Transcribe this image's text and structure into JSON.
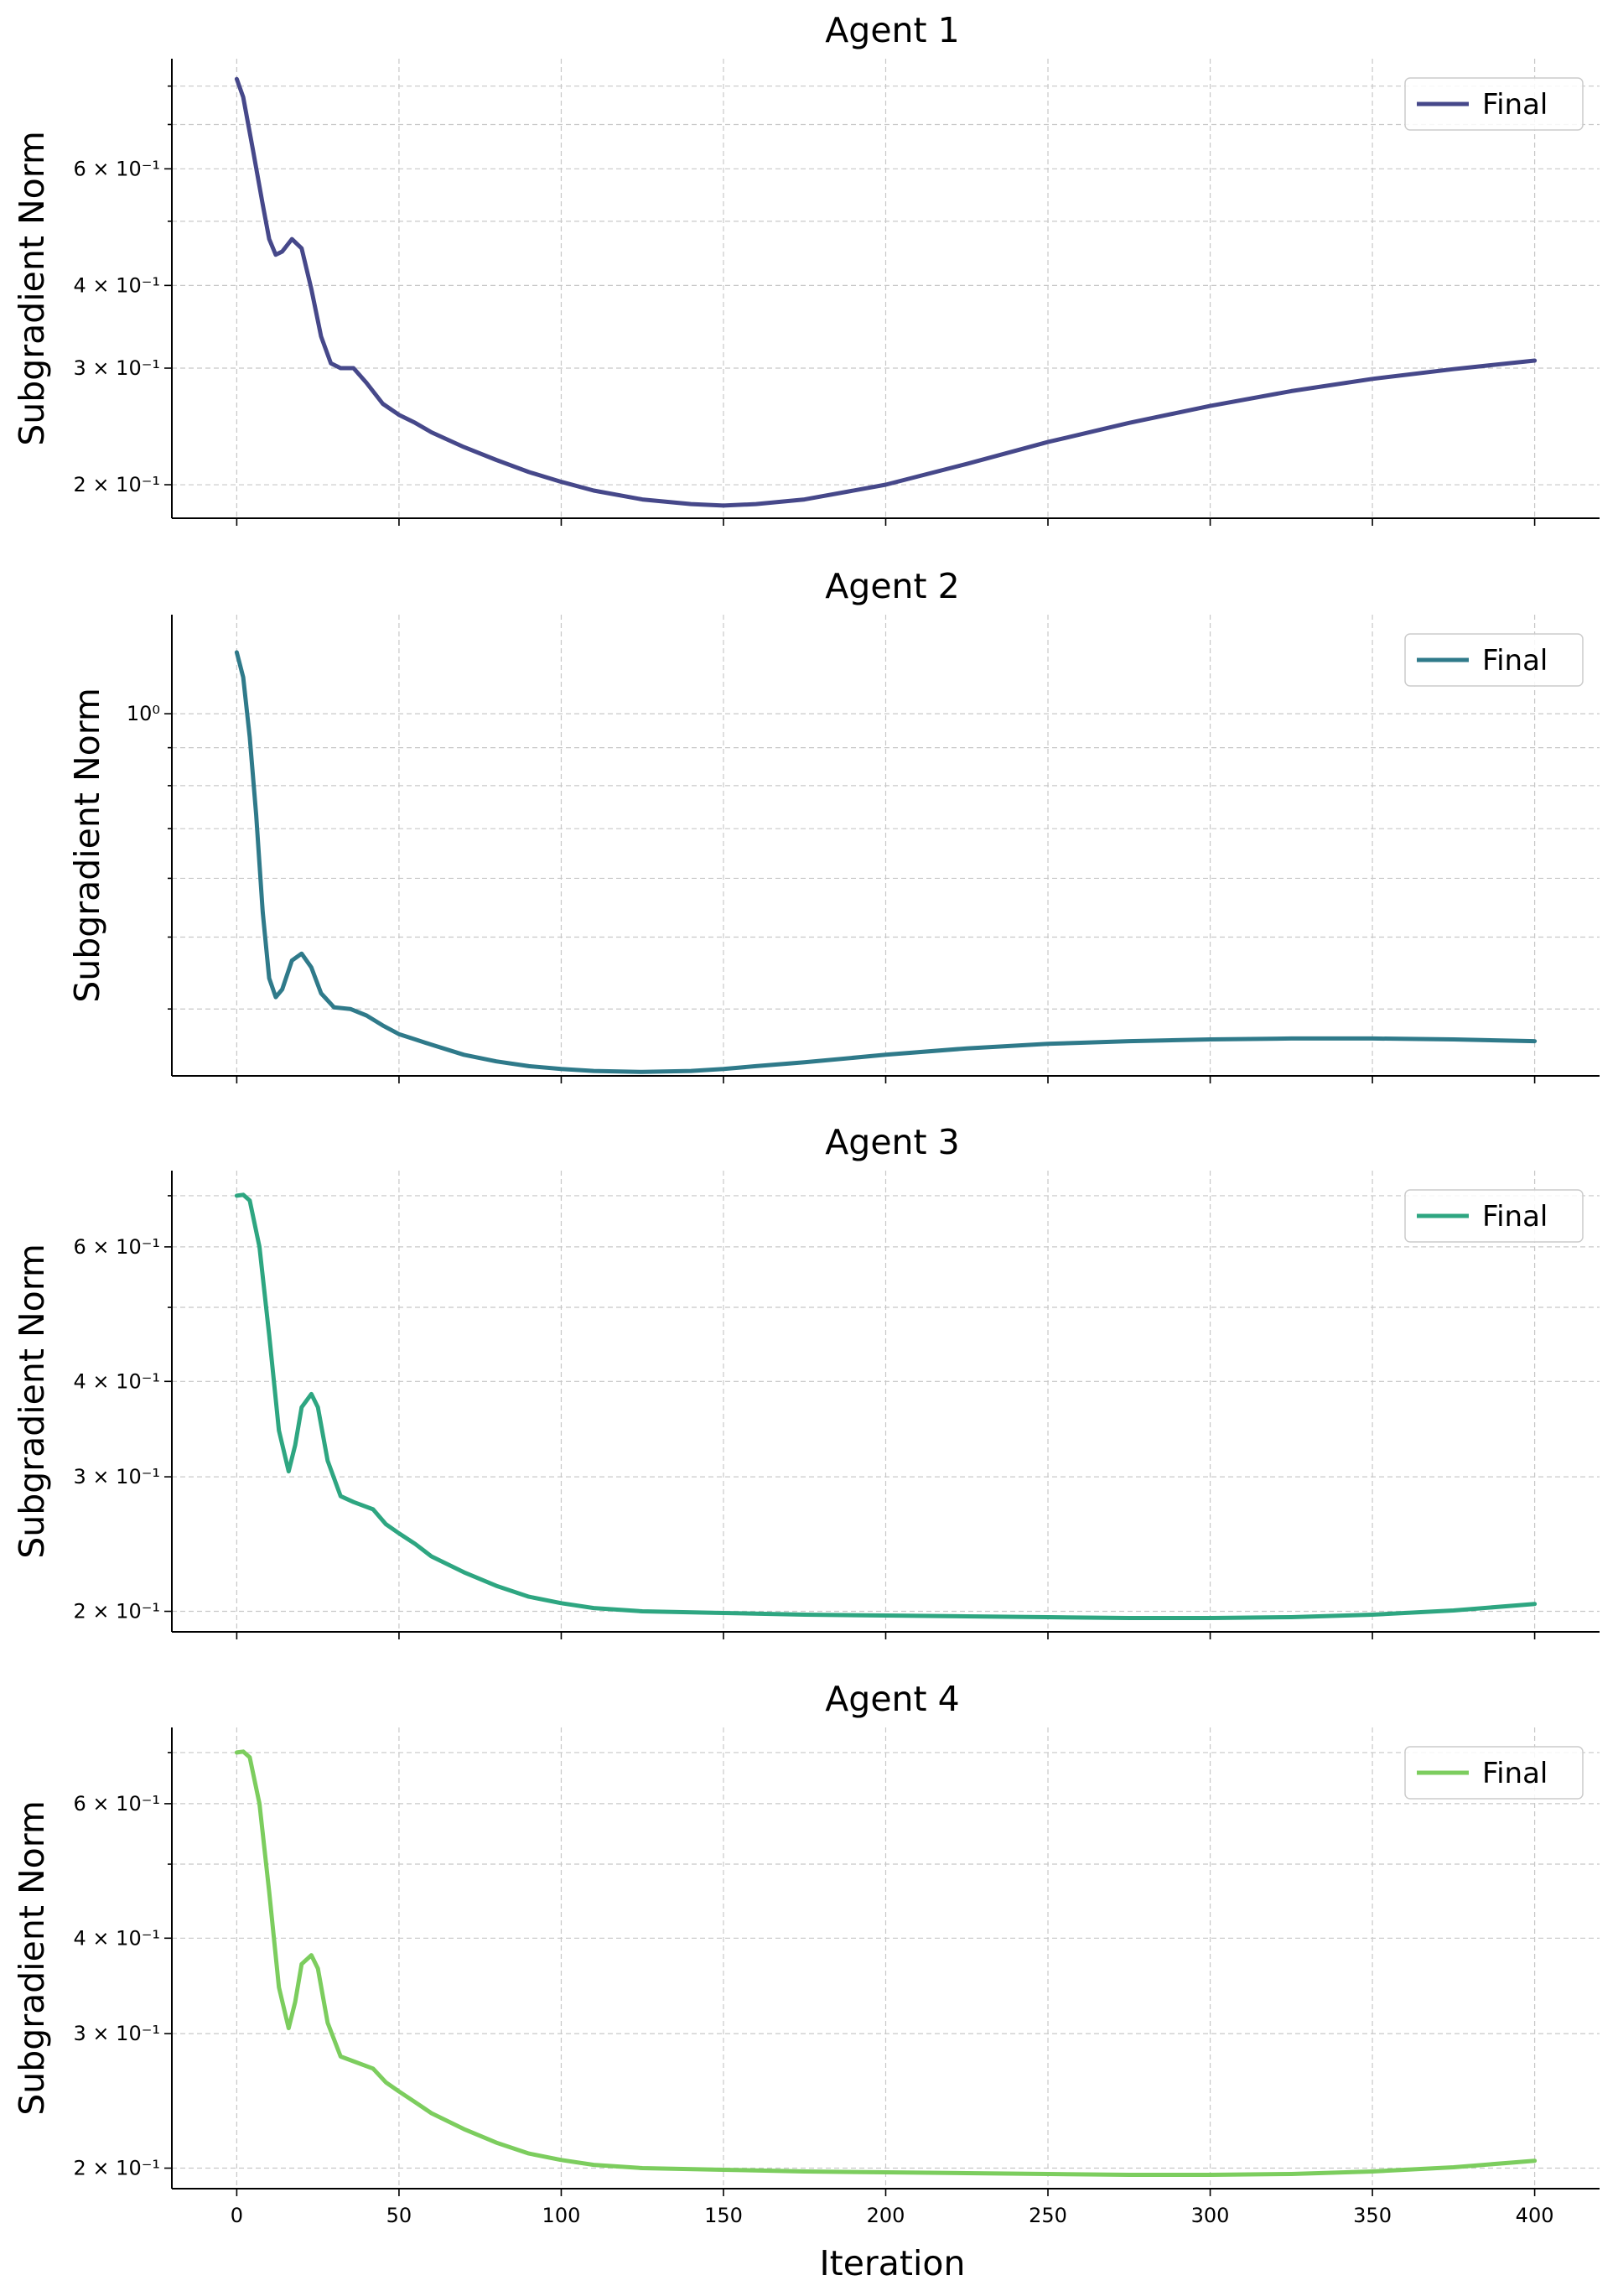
{
  "chart_data": [
    {
      "type": "line",
      "title": "Agent 1",
      "ylabel": "Subgradient Norm",
      "xlabel": "",
      "yscale": "log",
      "xlim": [
        -20,
        420
      ],
      "ylim": [
        0.178,
        0.88
      ],
      "xticks": [
        0,
        50,
        100,
        150,
        200,
        250,
        300,
        350,
        400
      ],
      "xtick_labels_visible": false,
      "yticks": [
        {
          "value": 0.2,
          "label": "2 × 10⁻¹"
        },
        {
          "value": 0.3,
          "label": "3 × 10⁻¹"
        },
        {
          "value": 0.4,
          "label": "4 × 10⁻¹"
        },
        {
          "value": 0.6,
          "label": "6 × 10⁻¹"
        }
      ],
      "yminor": [
        0.5,
        0.7,
        0.8
      ],
      "grid": true,
      "legend": "top-right",
      "series": [
        {
          "name": "Final",
          "color": "#46488a",
          "x": [
            0,
            2,
            5,
            8,
            10,
            12,
            14,
            17,
            20,
            23,
            26,
            29,
            32,
            36,
            40,
            45,
            50,
            55,
            60,
            70,
            80,
            90,
            100,
            110,
            125,
            140,
            150,
            160,
            175,
            200,
            225,
            250,
            275,
            300,
            325,
            350,
            375,
            400
          ],
          "values": [
            0.82,
            0.77,
            0.64,
            0.53,
            0.47,
            0.445,
            0.45,
            0.47,
            0.455,
            0.395,
            0.335,
            0.305,
            0.3,
            0.3,
            0.285,
            0.265,
            0.255,
            0.248,
            0.24,
            0.228,
            0.218,
            0.209,
            0.202,
            0.196,
            0.19,
            0.187,
            0.186,
            0.187,
            0.19,
            0.2,
            0.215,
            0.232,
            0.248,
            0.263,
            0.277,
            0.289,
            0.299,
            0.308
          ]
        }
      ]
    },
    {
      "type": "line",
      "title": "Agent 2",
      "ylabel": "Subgradient Norm",
      "xlabel": "",
      "yscale": "log",
      "xlim": [
        -20,
        420
      ],
      "ylim": [
        0.325,
        1.36
      ],
      "xticks": [
        0,
        50,
        100,
        150,
        200,
        250,
        300,
        350,
        400
      ],
      "xtick_labels_visible": false,
      "yticks": [
        {
          "value": 1.0,
          "label": "10⁰"
        }
      ],
      "yminor": [
        0.4,
        0.5,
        0.6,
        0.7,
        0.8,
        0.9
      ],
      "grid": true,
      "legend": "top-right",
      "series": [
        {
          "name": "Final",
          "color": "#2f7a8a",
          "x": [
            0,
            2,
            4,
            6,
            8,
            10,
            12,
            14,
            17,
            20,
            23,
            26,
            30,
            35,
            40,
            45,
            50,
            55,
            60,
            70,
            80,
            90,
            100,
            110,
            125,
            140,
            150,
            160,
            175,
            200,
            225,
            250,
            275,
            300,
            325,
            350,
            375,
            400
          ],
          "values": [
            1.21,
            1.12,
            0.93,
            0.73,
            0.54,
            0.44,
            0.415,
            0.425,
            0.465,
            0.475,
            0.455,
            0.42,
            0.402,
            0.4,
            0.392,
            0.38,
            0.37,
            0.364,
            0.358,
            0.347,
            0.34,
            0.335,
            0.332,
            0.33,
            0.329,
            0.33,
            0.332,
            0.335,
            0.339,
            0.347,
            0.354,
            0.359,
            0.362,
            0.364,
            0.365,
            0.365,
            0.364,
            0.362
          ]
        }
      ]
    },
    {
      "type": "line",
      "title": "Agent 3",
      "ylabel": "Subgradient Norm",
      "xlabel": "",
      "yscale": "log",
      "xlim": [
        -20,
        420
      ],
      "ylim": [
        0.188,
        0.755
      ],
      "xticks": [
        0,
        50,
        100,
        150,
        200,
        250,
        300,
        350,
        400
      ],
      "xtick_labels_visible": false,
      "yticks": [
        {
          "value": 0.2,
          "label": "2 × 10⁻¹"
        },
        {
          "value": 0.3,
          "label": "3 × 10⁻¹"
        },
        {
          "value": 0.4,
          "label": "4 × 10⁻¹"
        },
        {
          "value": 0.6,
          "label": "6 × 10⁻¹"
        }
      ],
      "yminor": [
        0.5,
        0.7
      ],
      "grid": true,
      "legend": "top-right",
      "series": [
        {
          "name": "Final",
          "color": "#2ea681",
          "x": [
            0,
            2,
            4,
            7,
            10,
            13,
            16,
            18,
            20,
            23,
            25,
            28,
            32,
            36,
            42,
            46,
            50,
            55,
            60,
            70,
            80,
            90,
            100,
            110,
            125,
            150,
            175,
            200,
            225,
            250,
            275,
            300,
            325,
            350,
            375,
            400
          ],
          "values": [
            0.7,
            0.702,
            0.69,
            0.6,
            0.46,
            0.345,
            0.305,
            0.33,
            0.37,
            0.385,
            0.37,
            0.315,
            0.283,
            0.278,
            0.272,
            0.26,
            0.253,
            0.245,
            0.236,
            0.225,
            0.216,
            0.209,
            0.205,
            0.202,
            0.2,
            0.199,
            0.198,
            0.1975,
            0.197,
            0.1965,
            0.196,
            0.196,
            0.1965,
            0.198,
            0.2005,
            0.2045
          ]
        }
      ]
    },
    {
      "type": "line",
      "title": "Agent 4",
      "ylabel": "Subgradient Norm",
      "xlabel": "Iteration",
      "yscale": "log",
      "xlim": [
        -20,
        420
      ],
      "ylim": [
        0.188,
        0.755
      ],
      "xticks": [
        0,
        50,
        100,
        150,
        200,
        250,
        300,
        350,
        400
      ],
      "xtick_labels_visible": true,
      "yticks": [
        {
          "value": 0.2,
          "label": "2 × 10⁻¹"
        },
        {
          "value": 0.3,
          "label": "3 × 10⁻¹"
        },
        {
          "value": 0.4,
          "label": "4 × 10⁻¹"
        },
        {
          "value": 0.6,
          "label": "6 × 10⁻¹"
        }
      ],
      "yminor": [
        0.5,
        0.7
      ],
      "grid": true,
      "legend": "top-right",
      "series": [
        {
          "name": "Final",
          "color": "#7ccd5e",
          "x": [
            0,
            2,
            4,
            7,
            10,
            13,
            16,
            18,
            20,
            23,
            25,
            28,
            32,
            36,
            42,
            46,
            50,
            55,
            60,
            70,
            80,
            90,
            100,
            110,
            125,
            150,
            175,
            200,
            225,
            250,
            275,
            300,
            325,
            350,
            375,
            400
          ],
          "values": [
            0.7,
            0.702,
            0.69,
            0.6,
            0.46,
            0.345,
            0.305,
            0.33,
            0.37,
            0.38,
            0.365,
            0.31,
            0.28,
            0.276,
            0.27,
            0.259,
            0.252,
            0.244,
            0.236,
            0.225,
            0.216,
            0.209,
            0.205,
            0.202,
            0.2,
            0.199,
            0.198,
            0.1975,
            0.197,
            0.1965,
            0.196,
            0.196,
            0.1965,
            0.198,
            0.2005,
            0.2045
          ]
        }
      ]
    }
  ]
}
